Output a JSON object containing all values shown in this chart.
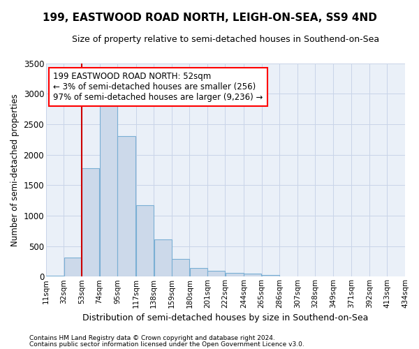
{
  "title": "199, EASTWOOD ROAD NORTH, LEIGH-ON-SEA, SS9 4ND",
  "subtitle": "Size of property relative to semi-detached houses in Southend-on-Sea",
  "xlabel": "Distribution of semi-detached houses by size in Southend-on-Sea",
  "ylabel": "Number of semi-detached properties",
  "footer_line1": "Contains HM Land Registry data © Crown copyright and database right 2024.",
  "footer_line2": "Contains public sector information licensed under the Open Government Licence v3.0.",
  "annotation_title": "199 EASTWOOD ROAD NORTH: 52sqm",
  "annotation_line1": "← 3% of semi-detached houses are smaller (256)",
  "annotation_line2": "97% of semi-detached houses are larger (9,236) →",
  "bar_left_edges": [
    11,
    32,
    53,
    74,
    95,
    117,
    138,
    159,
    180,
    201,
    222,
    244,
    265,
    286,
    307,
    328,
    349,
    371,
    392,
    413
  ],
  "bar_widths": [
    21,
    21,
    21,
    21,
    22,
    21,
    21,
    21,
    21,
    21,
    22,
    21,
    21,
    21,
    21,
    21,
    22,
    21,
    21,
    21
  ],
  "bar_heights": [
    10,
    310,
    1780,
    2900,
    2300,
    1170,
    610,
    290,
    135,
    90,
    65,
    45,
    28,
    0,
    0,
    0,
    0,
    0,
    0,
    0
  ],
  "bar_color": "#ccd9ea",
  "bar_edge_color": "#7aafd4",
  "tick_labels": [
    "11sqm",
    "32sqm",
    "53sqm",
    "74sqm",
    "95sqm",
    "117sqm",
    "138sqm",
    "159sqm",
    "180sqm",
    "201sqm",
    "222sqm",
    "244sqm",
    "265sqm",
    "286sqm",
    "307sqm",
    "328sqm",
    "349sqm",
    "371sqm",
    "392sqm",
    "413sqm",
    "434sqm"
  ],
  "tick_positions": [
    11,
    32,
    53,
    74,
    95,
    117,
    138,
    159,
    180,
    201,
    222,
    244,
    265,
    286,
    307,
    328,
    349,
    371,
    392,
    413,
    434
  ],
  "property_x": 53,
  "vline_color": "#cc0000",
  "ylim": [
    0,
    3500
  ],
  "xlim": [
    11,
    434
  ],
  "yticks": [
    0,
    500,
    1000,
    1500,
    2000,
    2500,
    3000,
    3500
  ],
  "grid_color": "#c8d4e8",
  "background_color": "#ffffff",
  "plot_bg_color": "#eaf0f8"
}
